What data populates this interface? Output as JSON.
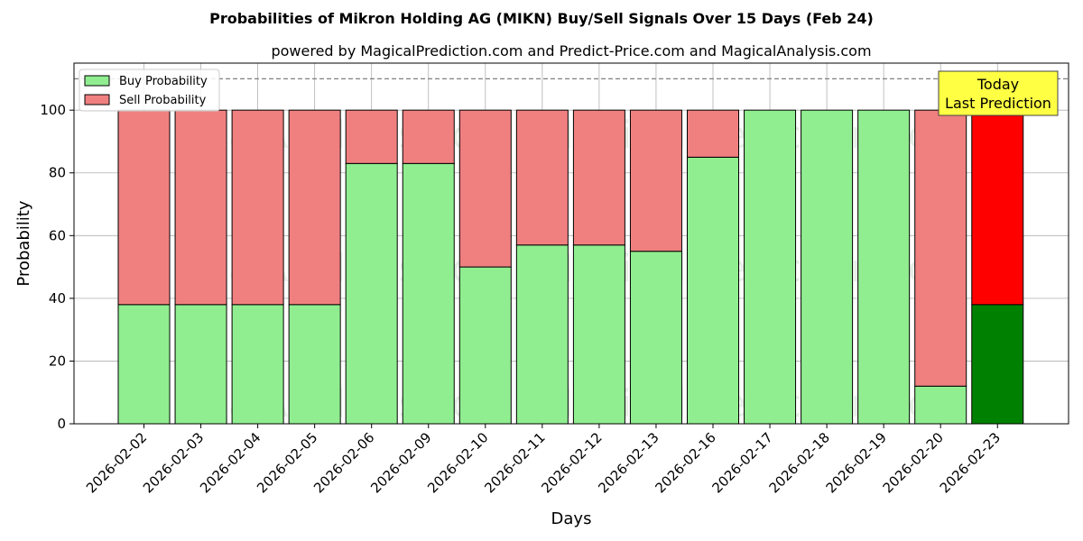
{
  "chart_data": {
    "type": "bar",
    "stacked": true,
    "title": "Probabilities of Mikron Holding AG (MIKN) Buy/Sell Signals Over 15 Days (Feb 24)",
    "subtitle": "powered by MagicalPrediction.com and Predict-Price.com and MagicalAnalysis.com",
    "xlabel": "Days",
    "ylabel": "Probability",
    "ylim": [
      0,
      115
    ],
    "yticks": [
      0,
      20,
      40,
      60,
      80,
      100
    ],
    "grid": true,
    "legend_position": "top-left",
    "reference_line": 110,
    "categories": [
      "2026-02-02",
      "2026-02-03",
      "2026-02-04",
      "2026-02-05",
      "2026-02-06",
      "2026-02-09",
      "2026-02-10",
      "2026-02-11",
      "2026-02-12",
      "2026-02-13",
      "2026-02-16",
      "2026-02-17",
      "2026-02-18",
      "2026-02-19",
      "2026-02-20",
      "2026-02-23"
    ],
    "series": [
      {
        "name": "Buy Probability",
        "values": [
          38,
          38,
          38,
          38,
          83,
          83,
          50,
          57,
          57,
          55,
          85,
          100,
          100,
          100,
          12,
          38
        ],
        "color": "#90ee90",
        "highlight_color": "#008000"
      },
      {
        "name": "Sell Probability",
        "values": [
          62,
          62,
          62,
          62,
          17,
          17,
          50,
          43,
          43,
          45,
          15,
          0,
          0,
          0,
          88,
          62
        ],
        "color": "#f08080",
        "highlight_color": "#ff0000"
      }
    ],
    "highlight_index": 15,
    "annotation": {
      "lines": [
        "Today",
        "Last Prediction"
      ],
      "background": "#ffff44"
    },
    "watermarks": [
      "MagicalAnalysis.com",
      "MagicalPrediction.com"
    ]
  }
}
